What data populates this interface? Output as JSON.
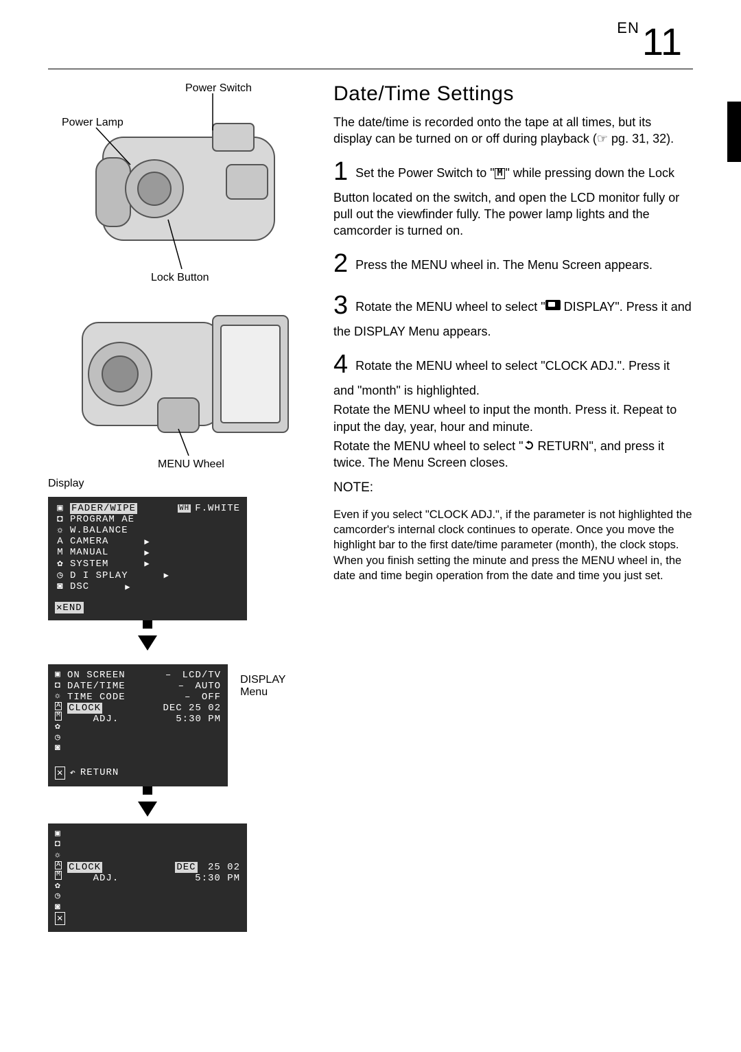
{
  "page": {
    "prefix": "EN",
    "number": "11"
  },
  "labels": {
    "power_switch": "Power Switch",
    "power_lamp": "Power Lamp",
    "lock_button": "Lock Button",
    "menu_wheel": "MENU Wheel",
    "display": "Display",
    "display_menu": "DISPLAY Menu"
  },
  "right": {
    "title": "Date/Time Settings",
    "intro": "The date/time is recorded onto the tape at all times, but its display can be turned on or off during playback (☞ pg. 31, 32).",
    "step1": " Set the Power Switch to \"",
    "step1b": "\" while pressing down the Lock Button located on the switch, and open the LCD monitor fully or pull out the viewfinder fully. The power lamp lights and the camcorder is turned on.",
    "step2": " Press the MENU wheel in. The Menu Screen appears.",
    "step3a": " Rotate the MENU wheel to select \"",
    "step3b": " DISPLAY\". Press it and the DISPLAY Menu appears.",
    "step4a": " Rotate the MENU wheel to select \"CLOCK ADJ.\". Press it and \"month\" is highlighted.",
    "step4b": "Rotate the MENU wheel to input the month. Press it. Repeat to input the day, year, hour and minute.",
    "step4c1": "Rotate the MENU wheel to select \"",
    "step4c2": " RETURN\", and press it twice. The Menu Screen closes.",
    "note_h": "NOTE:",
    "note": "Even if you select \"CLOCK ADJ.\", if the parameter is not highlighted the camcorder's internal clock continues to operate. Once you move the highlight bar to the first date/time parameter (month), the clock stops. When you finish setting the minute and press the MENU wheel in, the date and time begin operation from the date and time you just set."
  },
  "lcd1": {
    "rows": [
      {
        "icon": "▣",
        "text": "FADER/WIPE",
        "right": "WH F.WHITE",
        "hl": true
      },
      {
        "icon": "◘",
        "text": "PROGRAM AE"
      },
      {
        "icon": "☼",
        "text": "W.BALANCE"
      },
      {
        "icon": "A",
        "text": "CAMERA",
        "tri": true
      },
      {
        "icon": "M",
        "text": "MANUAL",
        "tri": true
      },
      {
        "icon": "✿",
        "text": "SYSTEM",
        "tri": true
      },
      {
        "icon": "◷",
        "text": "DISPLAY",
        "tri": true,
        "spaced": "D I SPLAY"
      },
      {
        "icon": "◙",
        "text": "DSC",
        "tri": true
      }
    ],
    "end": "END"
  },
  "lcd2": {
    "rows": [
      {
        "l": "ON SCREEN",
        "r": "LCD/TV",
        "dash": true
      },
      {
        "l": "DATE/TIME",
        "r": "AUTO",
        "dash": true
      },
      {
        "l": "TIME CODE",
        "r": "OFF",
        "dash": true
      },
      {
        "l": "CLOCK",
        "r": "DEC 25 02",
        "hl": true
      },
      {
        "l": "    ADJ.",
        "r": " 5:30 PM"
      }
    ],
    "return": "RETURN"
  },
  "lcd3": {
    "l1a": "CLOCK",
    "l1b": "DEC",
    "l1c": " 25 02",
    "l2a": "    ADJ.",
    "l2b": " 5:30 PM"
  },
  "style": {
    "lcd_bg": "#2b2b2b",
    "lcd_fg": "#ffffff",
    "hl_bg": "#d8d8d8",
    "hl_fg": "#000000",
    "lcd_font": "Courier New",
    "lcd_fontsize": 14
  }
}
